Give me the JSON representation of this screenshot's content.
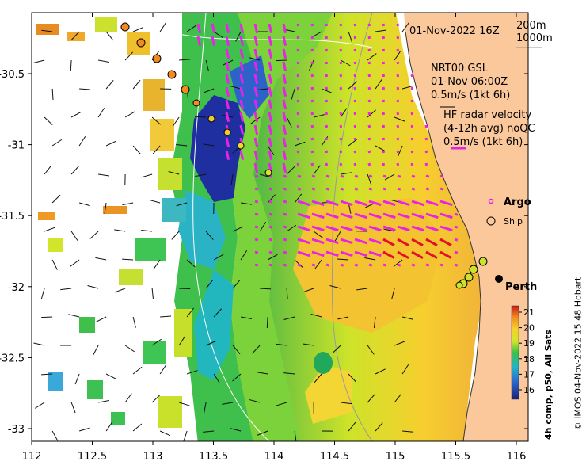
{
  "map": {
    "date_label": "01-Nov-2022 16Z",
    "scale_200": "200m",
    "scale_1000": "1000m",
    "gsl_title": "NRT00 GSL",
    "gsl_time": "01-Nov 06:00Z",
    "gsl_scale": "0.5m/s (1kt 6h)",
    "hf_title": "HF radar velocity",
    "hf_sub": "(4-12h avg) noQC",
    "hf_scale": "0.5m/s (1kt 6h)",
    "argo_label": "Argo",
    "ship_label": "Ship",
    "city": "Perth",
    "colorbar_title": "4h comp, p50, All Sats",
    "credit": "© IMOS 04-Nov-2022 15:48 Hobart",
    "colorbar_ticks": [
      "16",
      "17",
      "18",
      "19",
      "20",
      "21"
    ],
    "x_ticks": [
      "112",
      "112.5",
      "113",
      "113.5",
      "114",
      "114.5",
      "115",
      "115.5",
      "116"
    ],
    "y_ticks": [
      "-30.5",
      "-31",
      "-31.5",
      "-32",
      "-32.5",
      "-33"
    ],
    "colors": {
      "land": "#fbc89c",
      "warm": "#f1c02e",
      "mid": "#c8e62a",
      "cool": "#3dc54d",
      "cold": "#1c3aa8",
      "hf_arrow": "#e822e8",
      "strong_arrow": "#e4102a"
    }
  }
}
